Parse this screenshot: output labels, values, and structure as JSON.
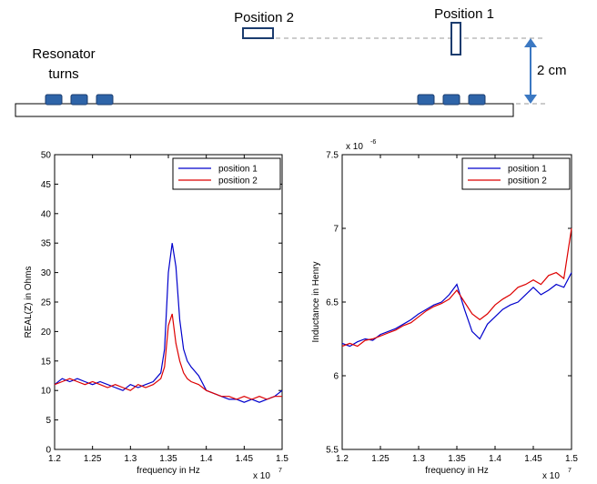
{
  "schematic": {
    "position1_label": "Position 1",
    "position2_label": "Position 2",
    "resonator_line1": "Resonator",
    "resonator_line2": "turns",
    "distance_label": "2 cm",
    "colors": {
      "pad": "#2e64a8",
      "pad_border": "#1b3c6e",
      "arrow": "#3b78c2",
      "dashed": "#999999"
    }
  },
  "chart_data": [
    {
      "type": "line",
      "title": "",
      "xlabel": "frequency in Hz",
      "ylabel": "REAL(Z) in Ohms",
      "x_multiplier": "x 10",
      "x_multiplier_exp": "7",
      "xlim": [
        1.2,
        1.5
      ],
      "ylim": [
        0,
        50
      ],
      "x_ticks": [
        "1.2",
        "1.25",
        "1.3",
        "1.35",
        "1.4",
        "1.45",
        "1.5"
      ],
      "y_ticks": [
        "0",
        "5",
        "10",
        "15",
        "20",
        "25",
        "30",
        "35",
        "40",
        "45",
        "50"
      ],
      "legend_position": "top-right",
      "series": [
        {
          "name": "position 1",
          "color": "#0000cc",
          "x": [
            1.2,
            1.21,
            1.22,
            1.23,
            1.24,
            1.25,
            1.26,
            1.27,
            1.28,
            1.29,
            1.3,
            1.31,
            1.32,
            1.33,
            1.34,
            1.345,
            1.35,
            1.355,
            1.36,
            1.365,
            1.37,
            1.375,
            1.38,
            1.39,
            1.4,
            1.41,
            1.42,
            1.43,
            1.44,
            1.45,
            1.46,
            1.47,
            1.48,
            1.49,
            1.5
          ],
          "y": [
            11,
            12,
            11.5,
            12,
            11.5,
            11,
            11.5,
            11,
            10.5,
            10,
            11,
            10.5,
            11,
            11.5,
            13,
            17,
            30,
            35,
            31,
            22,
            17,
            15,
            14,
            12.5,
            10,
            9.5,
            9,
            8.5,
            8.5,
            8,
            8.5,
            8,
            8.5,
            9,
            10
          ]
        },
        {
          "name": "position 2",
          "color": "#dd0000",
          "x": [
            1.2,
            1.21,
            1.22,
            1.23,
            1.24,
            1.25,
            1.26,
            1.27,
            1.28,
            1.29,
            1.3,
            1.31,
            1.32,
            1.33,
            1.34,
            1.345,
            1.35,
            1.355,
            1.36,
            1.365,
            1.37,
            1.375,
            1.38,
            1.39,
            1.4,
            1.41,
            1.42,
            1.43,
            1.44,
            1.45,
            1.46,
            1.47,
            1.48,
            1.49,
            1.5
          ],
          "y": [
            11,
            11.5,
            12,
            11.5,
            11,
            11.5,
            11,
            10.5,
            11,
            10.5,
            10,
            11,
            10.5,
            11,
            12,
            14,
            21,
            23,
            18,
            15,
            13,
            12,
            11.5,
            11,
            10,
            9.5,
            9,
            9,
            8.5,
            9,
            8.5,
            9,
            8.5,
            9,
            9
          ]
        }
      ]
    },
    {
      "type": "line",
      "title": "",
      "xlabel": "frequency in Hz",
      "ylabel": "Inductance in Henry",
      "x_multiplier": "x 10",
      "x_multiplier_exp": "7",
      "y_multiplier": "x 10",
      "y_multiplier_exp": "-6",
      "xlim": [
        1.2,
        1.5
      ],
      "ylim": [
        5.5,
        7.5
      ],
      "x_ticks": [
        "1.2",
        "1.25",
        "1.3",
        "1.35",
        "1.4",
        "1.45",
        "1.5"
      ],
      "y_ticks": [
        "5.5",
        "6",
        "6.5",
        "7",
        "7.5"
      ],
      "legend_position": "top-right",
      "series": [
        {
          "name": "position 1",
          "color": "#0000cc",
          "x": [
            1.2,
            1.21,
            1.22,
            1.23,
            1.24,
            1.25,
            1.26,
            1.27,
            1.28,
            1.29,
            1.3,
            1.31,
            1.32,
            1.33,
            1.34,
            1.35,
            1.36,
            1.37,
            1.38,
            1.39,
            1.4,
            1.41,
            1.42,
            1.43,
            1.44,
            1.45,
            1.46,
            1.47,
            1.48,
            1.49,
            1.5
          ],
          "y": [
            6.22,
            6.2,
            6.23,
            6.25,
            6.24,
            6.28,
            6.3,
            6.32,
            6.35,
            6.38,
            6.42,
            6.45,
            6.48,
            6.5,
            6.55,
            6.62,
            6.45,
            6.3,
            6.25,
            6.35,
            6.4,
            6.45,
            6.48,
            6.5,
            6.55,
            6.6,
            6.55,
            6.58,
            6.62,
            6.6,
            6.7
          ]
        },
        {
          "name": "position 2",
          "color": "#dd0000",
          "x": [
            1.2,
            1.21,
            1.22,
            1.23,
            1.24,
            1.25,
            1.26,
            1.27,
            1.28,
            1.29,
            1.3,
            1.31,
            1.32,
            1.33,
            1.34,
            1.35,
            1.36,
            1.37,
            1.38,
            1.39,
            1.4,
            1.41,
            1.42,
            1.43,
            1.44,
            1.45,
            1.46,
            1.47,
            1.48,
            1.49,
            1.5
          ],
          "y": [
            6.2,
            6.22,
            6.2,
            6.24,
            6.25,
            6.27,
            6.29,
            6.31,
            6.34,
            6.36,
            6.4,
            6.44,
            6.47,
            6.49,
            6.52,
            6.58,
            6.5,
            6.42,
            6.38,
            6.42,
            6.48,
            6.52,
            6.55,
            6.6,
            6.62,
            6.65,
            6.62,
            6.68,
            6.7,
            6.66,
            7.0
          ]
        }
      ]
    }
  ]
}
